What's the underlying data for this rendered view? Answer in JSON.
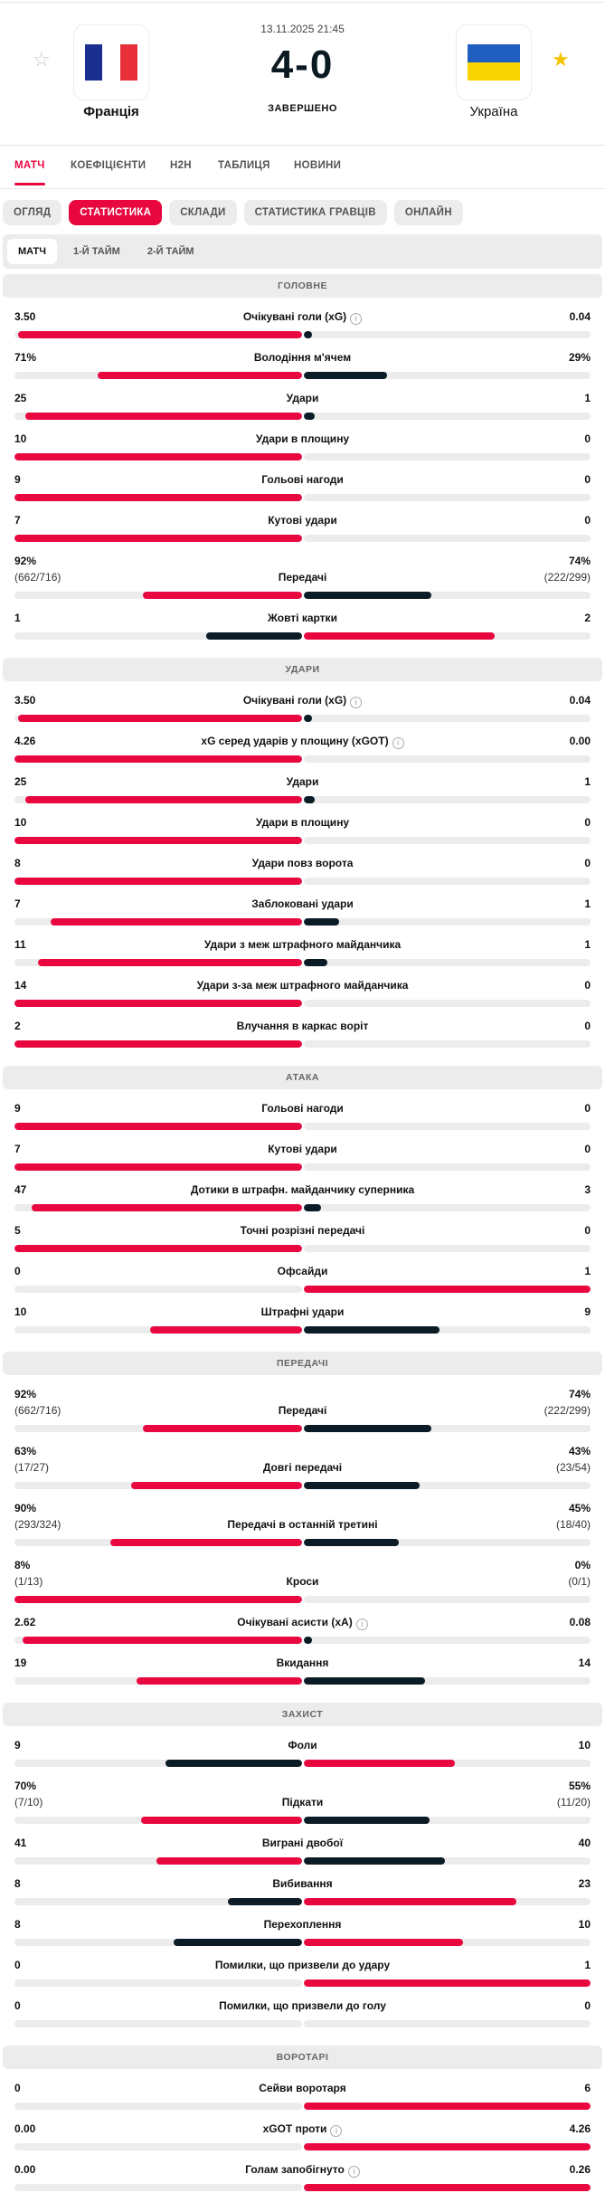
{
  "match": {
    "date": "13.11.2025 21:45",
    "score": "4-0",
    "status": "ЗАВЕРШЕНО",
    "home": "Франція",
    "away": "Україна"
  },
  "colors": {
    "lead": "#e8073f",
    "trail": "#0b1c26",
    "track": "#ececec"
  },
  "tabs": [
    "МАТЧ",
    "КОЕФІЦІЄНТИ",
    "H2H",
    "ТАБЛИЦЯ",
    "НОВИНИ"
  ],
  "pills": [
    "ОГЛЯД",
    "СТАТИСТИКА",
    "СКЛАДИ",
    "СТАТИСТИКА ГРАВЦІВ",
    "ОНЛАЙН"
  ],
  "periods": [
    "МАТЧ",
    "1-Й ТАЙМ",
    "2-Й ТАЙМ"
  ],
  "sections": [
    {
      "title": "ГОЛОВНЕ",
      "stats": [
        {
          "label": "Очікувані голи (xG)",
          "info": true,
          "home": "3.50",
          "away": "0.04",
          "h": 3.5,
          "a": 0.04
        },
        {
          "label": "Володіння м'ячем",
          "home": "71%",
          "away": "29%",
          "h": 71,
          "a": 29
        },
        {
          "label": "Удари",
          "home": "25",
          "away": "1",
          "h": 25,
          "a": 1
        },
        {
          "label": "Удари в площину",
          "home": "10",
          "away": "0",
          "h": 10,
          "a": 0
        },
        {
          "label": "Гольові нагоди",
          "home": "9",
          "away": "0",
          "h": 9,
          "a": 0
        },
        {
          "label": "Кутові удари",
          "home": "7",
          "away": "0",
          "h": 7,
          "a": 0
        },
        {
          "label": "Передачі",
          "home": "92%",
          "home_sub": "(662/716)",
          "away": "74%",
          "away_sub": "(222/299)",
          "h": 92,
          "a": 74
        },
        {
          "label": "Жовті картки",
          "home": "1",
          "away": "2",
          "h": 1,
          "a": 2
        }
      ]
    },
    {
      "title": "УДАРИ",
      "stats": [
        {
          "label": "Очікувані голи (xG)",
          "info": true,
          "home": "3.50",
          "away": "0.04",
          "h": 3.5,
          "a": 0.04
        },
        {
          "label": "xG серед ударів у площину (xGOT)",
          "info": true,
          "home": "4.26",
          "away": "0.00",
          "h": 4.26,
          "a": 0
        },
        {
          "label": "Удари",
          "home": "25",
          "away": "1",
          "h": 25,
          "a": 1
        },
        {
          "label": "Удари в площину",
          "home": "10",
          "away": "0",
          "h": 10,
          "a": 0
        },
        {
          "label": "Удари повз ворота",
          "home": "8",
          "away": "0",
          "h": 8,
          "a": 0
        },
        {
          "label": "Заблоковані удари",
          "home": "7",
          "away": "1",
          "h": 7,
          "a": 1
        },
        {
          "label": "Удари з меж штрафного майданчика",
          "home": "11",
          "away": "1",
          "h": 11,
          "a": 1
        },
        {
          "label": "Удари з-за меж штрафного майданчика",
          "home": "14",
          "away": "0",
          "h": 14,
          "a": 0
        },
        {
          "label": "Влучання в каркас воріт",
          "home": "2",
          "away": "0",
          "h": 2,
          "a": 0
        }
      ]
    },
    {
      "title": "АТАКА",
      "stats": [
        {
          "label": "Гольові нагоди",
          "home": "9",
          "away": "0",
          "h": 9,
          "a": 0
        },
        {
          "label": "Кутові удари",
          "home": "7",
          "away": "0",
          "h": 7,
          "a": 0
        },
        {
          "label": "Дотики в штрафн. майданчику суперника",
          "home": "47",
          "away": "3",
          "h": 47,
          "a": 3
        },
        {
          "label": "Точні розрізні передачі",
          "home": "5",
          "away": "0",
          "h": 5,
          "a": 0
        },
        {
          "label": "Офсайди",
          "home": "0",
          "away": "1",
          "h": 0,
          "a": 1
        },
        {
          "label": "Штрафні удари",
          "home": "10",
          "away": "9",
          "h": 10,
          "a": 9
        }
      ]
    },
    {
      "title": "ПЕРЕДАЧІ",
      "stats": [
        {
          "label": "Передачі",
          "home": "92%",
          "home_sub": "(662/716)",
          "away": "74%",
          "away_sub": "(222/299)",
          "h": 92,
          "a": 74
        },
        {
          "label": "Довгі передачі",
          "home": "63%",
          "home_sub": "(17/27)",
          "away": "43%",
          "away_sub": "(23/54)",
          "h": 63,
          "a": 43
        },
        {
          "label": "Передачі в останній третині",
          "home": "90%",
          "home_sub": "(293/324)",
          "away": "45%",
          "away_sub": "(18/40)",
          "h": 90,
          "a": 45
        },
        {
          "label": "Кроси",
          "home": "8%",
          "home_sub": "(1/13)",
          "away": "0%",
          "away_sub": "(0/1)",
          "h": 8,
          "a": 0
        },
        {
          "label": "Очікувані асисти (xA)",
          "info": true,
          "home": "2.62",
          "away": "0.08",
          "h": 2.62,
          "a": 0.08
        },
        {
          "label": "Вкидання",
          "home": "19",
          "away": "14",
          "h": 19,
          "a": 14
        }
      ]
    },
    {
      "title": "ЗАХИСТ",
      "stats": [
        {
          "label": "Фоли",
          "home": "9",
          "away": "10",
          "h": 9,
          "a": 10
        },
        {
          "label": "Підкати",
          "home": "70%",
          "home_sub": "(7/10)",
          "away": "55%",
          "away_sub": "(11/20)",
          "h": 70,
          "a": 55
        },
        {
          "label": "Виграні двобої",
          "home": "41",
          "away": "40",
          "h": 41,
          "a": 40
        },
        {
          "label": "Вибивання",
          "home": "8",
          "away": "23",
          "h": 8,
          "a": 23
        },
        {
          "label": "Перехоплення",
          "home": "8",
          "away": "10",
          "h": 8,
          "a": 10
        },
        {
          "label": "Помилки, що призвели до удару",
          "home": "0",
          "away": "1",
          "h": 0,
          "a": 1
        },
        {
          "label": "Помилки, що призвели до голу",
          "home": "0",
          "away": "0",
          "h": 0,
          "a": 0
        }
      ]
    },
    {
      "title": "ВОРОТАРІ",
      "stats": [
        {
          "label": "Сейви воротаря",
          "home": "0",
          "away": "6",
          "h": 0,
          "a": 6
        },
        {
          "label": "xGOT проти",
          "info": true,
          "home": "0.00",
          "away": "4.26",
          "h": 0,
          "a": 4.26
        },
        {
          "label": "Голам запобігнуто",
          "info": true,
          "home": "0.00",
          "away": "0.26",
          "h": 0,
          "a": 0.26
        }
      ]
    }
  ]
}
